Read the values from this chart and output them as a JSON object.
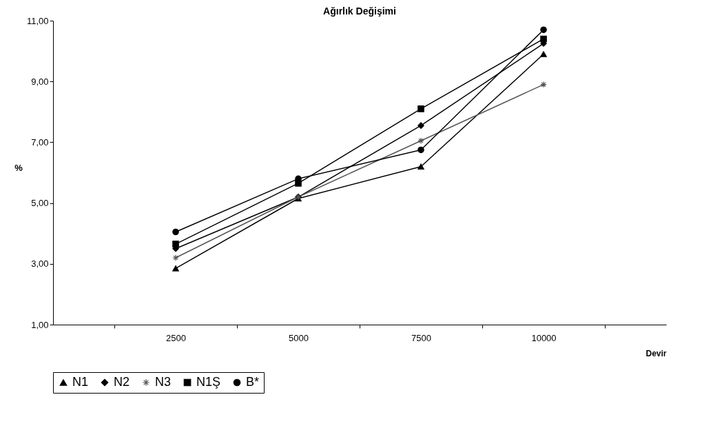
{
  "chart_data": {
    "type": "line",
    "title": "Ağırlık Değişimi",
    "xlabel": "Devir",
    "ylabel": "%",
    "categories": [
      "2500",
      "5000",
      "7500",
      "10000"
    ],
    "ylim": [
      1,
      11
    ],
    "yticks": [
      {
        "value": 1,
        "label": "1,00"
      },
      {
        "value": 3,
        "label": "3,00"
      },
      {
        "value": 5,
        "label": "5,00"
      },
      {
        "value": 7,
        "label": "7,00"
      },
      {
        "value": 9,
        "label": "9,00"
      },
      {
        "value": 11,
        "label": "11,00"
      }
    ],
    "grid": false,
    "legend": "bottom",
    "line_style": "solid",
    "series": [
      {
        "name": "N1",
        "color": "#000000",
        "marker": "triangle",
        "values": [
          2.85,
          5.15,
          6.2,
          9.9
        ]
      },
      {
        "name": "N2",
        "color": "#000000",
        "marker": "diamond",
        "values": [
          3.5,
          5.2,
          7.55,
          10.25
        ]
      },
      {
        "name": "N3",
        "color": "#555555",
        "marker": "cross",
        "values": [
          3.2,
          5.2,
          7.05,
          8.9
        ]
      },
      {
        "name": "N1Ş",
        "color": "#000000",
        "marker": "square",
        "values": [
          3.65,
          5.65,
          8.1,
          10.4
        ]
      },
      {
        "name": "B*",
        "color": "#000000",
        "marker": "circle",
        "values": [
          4.05,
          5.8,
          6.75,
          10.7
        ]
      }
    ]
  }
}
